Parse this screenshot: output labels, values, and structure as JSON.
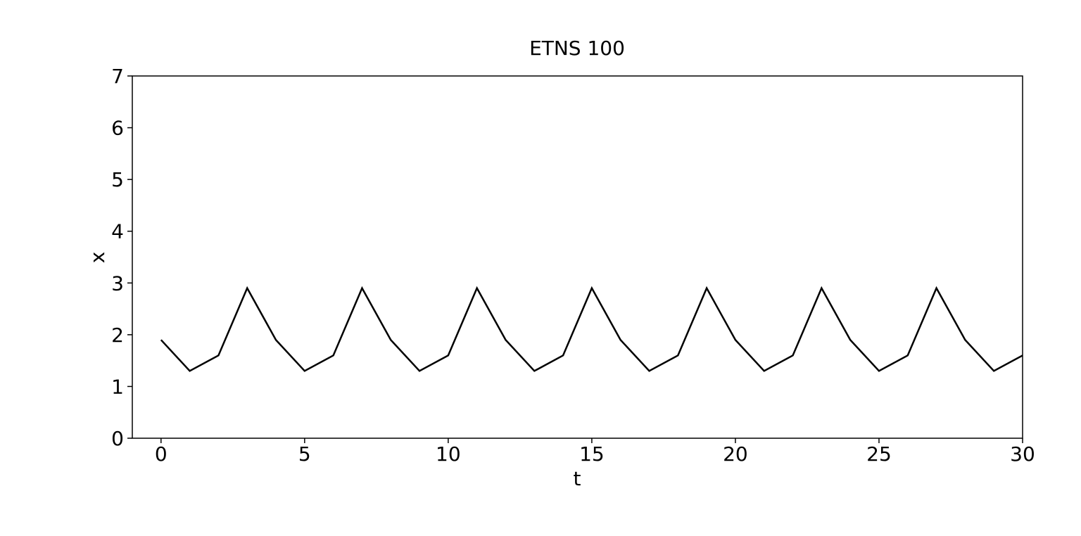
{
  "chart_data": {
    "type": "line",
    "title": "ETNS 100",
    "xlabel": "t",
    "ylabel": "x",
    "xlim": [
      -1,
      30
    ],
    "ylim": [
      0,
      7
    ],
    "xticks": [
      0,
      5,
      10,
      15,
      20,
      25,
      30
    ],
    "yticks": [
      0,
      1,
      2,
      3,
      4,
      5,
      6,
      7
    ],
    "grid": false,
    "line_color": "#000000",
    "series": [
      {
        "x": [
          0,
          1,
          2,
          3,
          4,
          5,
          6,
          7,
          8,
          9,
          10,
          11,
          12,
          13,
          14,
          15,
          16,
          17,
          18,
          19,
          20,
          21,
          22,
          23,
          24,
          25,
          26,
          27,
          28,
          29,
          30
        ],
        "y": [
          1.9,
          1.3,
          1.6,
          2.9,
          1.9,
          1.3,
          1.6,
          2.9,
          1.9,
          1.3,
          1.6,
          2.9,
          1.9,
          1.3,
          1.6,
          2.9,
          1.9,
          1.3,
          1.6,
          2.9,
          1.9,
          1.3,
          1.6,
          2.9,
          1.9,
          1.3,
          1.6,
          2.9,
          1.9,
          1.3,
          1.6
        ]
      }
    ]
  }
}
